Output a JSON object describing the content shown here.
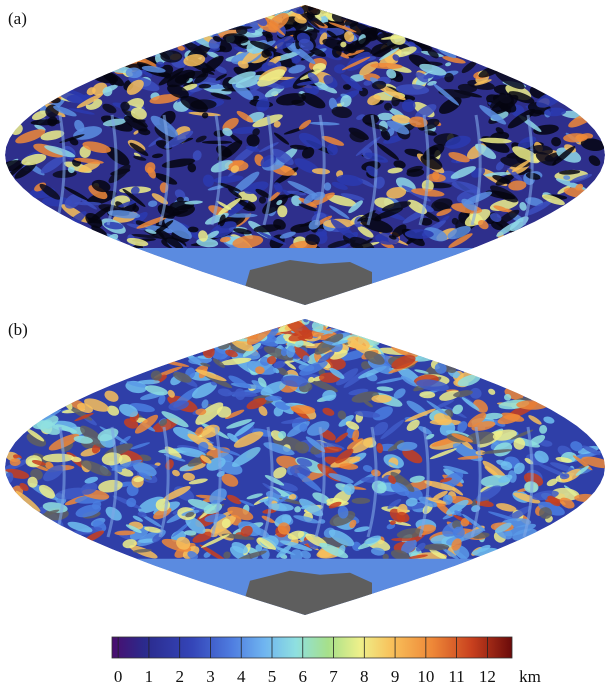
{
  "panels": [
    {
      "label": "(a)"
    },
    {
      "label": "(b)"
    }
  ],
  "colorbar": {
    "range": [
      -0.2,
      12.8
    ],
    "ticks": [
      0,
      1,
      2,
      3,
      4,
      5,
      6,
      7,
      8,
      9,
      10,
      11,
      12
    ],
    "unit": "km"
  }
}
